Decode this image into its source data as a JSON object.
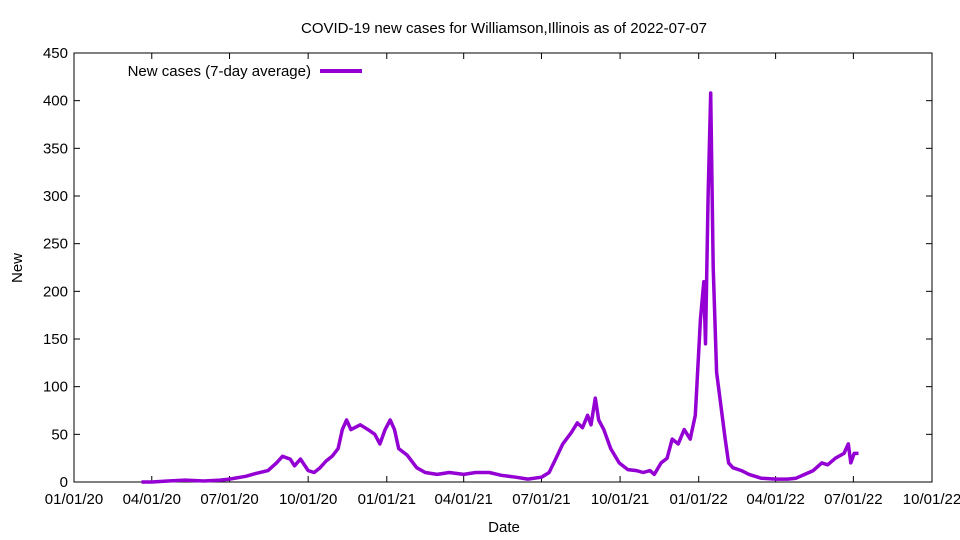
{
  "chart_data": {
    "type": "line",
    "title": "COVID-19 new cases for Williamson,Illinois as of 2022-07-07",
    "xlabel": "Date",
    "ylabel": "New",
    "xlim": [
      "2020-01-01",
      "2022-10-01"
    ],
    "ylim": [
      0,
      450
    ],
    "yticks": [
      0,
      50,
      100,
      150,
      200,
      250,
      300,
      350,
      400,
      450
    ],
    "xticks": [
      {
        "date": "2020-01-01",
        "label": "01/01/20"
      },
      {
        "date": "2020-04-01",
        "label": "04/01/20"
      },
      {
        "date": "2020-07-01",
        "label": "07/01/20"
      },
      {
        "date": "2020-10-01",
        "label": "10/01/20"
      },
      {
        "date": "2021-01-01",
        "label": "01/01/21"
      },
      {
        "date": "2021-04-01",
        "label": "04/01/21"
      },
      {
        "date": "2021-07-01",
        "label": "07/01/21"
      },
      {
        "date": "2021-10-01",
        "label": "10/01/21"
      },
      {
        "date": "2022-01-01",
        "label": "01/01/22"
      },
      {
        "date": "2022-04-01",
        "label": "04/01/22"
      },
      {
        "date": "2022-07-01",
        "label": "07/01/22"
      },
      {
        "date": "2022-10-01",
        "label": "10/01/22"
      }
    ],
    "grid": false,
    "legend_position": "top-left",
    "series": [
      {
        "name": "New cases (7-day average)",
        "color": "#9400d3",
        "points": [
          [
            "2020-03-20",
            0
          ],
          [
            "2020-04-01",
            0
          ],
          [
            "2020-04-20",
            1
          ],
          [
            "2020-05-10",
            2
          ],
          [
            "2020-06-01",
            1
          ],
          [
            "2020-06-20",
            2
          ],
          [
            "2020-07-01",
            3
          ],
          [
            "2020-07-20",
            6
          ],
          [
            "2020-08-01",
            9
          ],
          [
            "2020-08-15",
            12
          ],
          [
            "2020-08-25",
            20
          ],
          [
            "2020-09-01",
            27
          ],
          [
            "2020-09-10",
            24
          ],
          [
            "2020-09-15",
            17
          ],
          [
            "2020-09-22",
            24
          ],
          [
            "2020-10-01",
            12
          ],
          [
            "2020-10-08",
            10
          ],
          [
            "2020-10-15",
            15
          ],
          [
            "2020-10-22",
            22
          ],
          [
            "2020-10-29",
            27
          ],
          [
            "2020-11-05",
            35
          ],
          [
            "2020-11-10",
            55
          ],
          [
            "2020-11-15",
            65
          ],
          [
            "2020-11-20",
            55
          ],
          [
            "2020-12-01",
            60
          ],
          [
            "2020-12-10",
            55
          ],
          [
            "2020-12-18",
            50
          ],
          [
            "2020-12-24",
            40
          ],
          [
            "2020-12-30",
            55
          ],
          [
            "2021-01-05",
            65
          ],
          [
            "2021-01-10",
            55
          ],
          [
            "2021-01-15",
            35
          ],
          [
            "2021-01-25",
            28
          ],
          [
            "2021-02-05",
            15
          ],
          [
            "2021-02-15",
            10
          ],
          [
            "2021-03-01",
            8
          ],
          [
            "2021-03-15",
            10
          ],
          [
            "2021-04-01",
            8
          ],
          [
            "2021-04-15",
            10
          ],
          [
            "2021-05-01",
            10
          ],
          [
            "2021-05-15",
            7
          ],
          [
            "2021-06-01",
            5
          ],
          [
            "2021-06-15",
            3
          ],
          [
            "2021-07-01",
            5
          ],
          [
            "2021-07-10",
            10
          ],
          [
            "2021-07-18",
            25
          ],
          [
            "2021-07-26",
            40
          ],
          [
            "2021-08-05",
            52
          ],
          [
            "2021-08-12",
            62
          ],
          [
            "2021-08-18",
            57
          ],
          [
            "2021-08-24",
            70
          ],
          [
            "2021-08-28",
            60
          ],
          [
            "2021-09-02",
            88
          ],
          [
            "2021-09-06",
            65
          ],
          [
            "2021-09-12",
            55
          ],
          [
            "2021-09-20",
            35
          ],
          [
            "2021-09-30",
            20
          ],
          [
            "2021-10-10",
            13
          ],
          [
            "2021-10-20",
            12
          ],
          [
            "2021-10-28",
            10
          ],
          [
            "2021-11-05",
            12
          ],
          [
            "2021-11-10",
            8
          ],
          [
            "2021-11-18",
            20
          ],
          [
            "2021-11-25",
            25
          ],
          [
            "2021-12-01",
            45
          ],
          [
            "2021-12-08",
            40
          ],
          [
            "2021-12-15",
            55
          ],
          [
            "2021-12-22",
            45
          ],
          [
            "2021-12-28",
            70
          ],
          [
            "2022-01-03",
            170
          ],
          [
            "2022-01-07",
            210
          ],
          [
            "2022-01-09",
            145
          ],
          [
            "2022-01-12",
            300
          ],
          [
            "2022-01-15",
            408
          ],
          [
            "2022-01-18",
            225
          ],
          [
            "2022-01-22",
            115
          ],
          [
            "2022-01-27",
            80
          ],
          [
            "2022-02-01",
            45
          ],
          [
            "2022-02-05",
            20
          ],
          [
            "2022-02-10",
            15
          ],
          [
            "2022-02-20",
            12
          ],
          [
            "2022-03-01",
            8
          ],
          [
            "2022-03-15",
            4
          ],
          [
            "2022-04-01",
            3
          ],
          [
            "2022-04-15",
            3
          ],
          [
            "2022-04-25",
            4
          ],
          [
            "2022-05-05",
            8
          ],
          [
            "2022-05-15",
            12
          ],
          [
            "2022-05-25",
            20
          ],
          [
            "2022-06-01",
            18
          ],
          [
            "2022-06-10",
            25
          ],
          [
            "2022-06-20",
            30
          ],
          [
            "2022-06-25",
            40
          ],
          [
            "2022-06-28",
            20
          ],
          [
            "2022-07-02",
            30
          ],
          [
            "2022-07-07",
            30
          ]
        ]
      }
    ]
  }
}
